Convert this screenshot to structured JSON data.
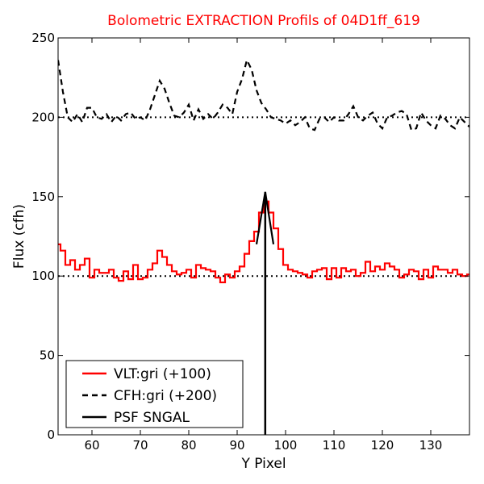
{
  "chart_data": {
    "type": "line",
    "title": "Bolometric EXTRACTION Profils of 04D1ff_619",
    "title_color": "#ff0000",
    "xlabel": "Y Pixel",
    "ylabel": "Flux (cfh)",
    "xlim": [
      53,
      138
    ],
    "ylim": [
      0,
      250
    ],
    "xticks": [
      60,
      70,
      80,
      90,
      100,
      110,
      120,
      130
    ],
    "yticks": [
      0,
      50,
      100,
      150,
      200,
      250
    ],
    "grid": false,
    "legend_position": "lower-left",
    "reference_lines": [
      {
        "y": 100,
        "style": "dotted",
        "color": "#000000"
      },
      {
        "y": 200,
        "style": "dotted",
        "color": "#000000"
      }
    ],
    "series": [
      {
        "name": "VLT:gri (+100)",
        "color": "#ff0000",
        "style": "steps",
        "x": [
          53,
          54,
          55,
          56,
          57,
          58,
          59,
          60,
          61,
          62,
          63,
          64,
          65,
          66,
          67,
          68,
          69,
          70,
          71,
          72,
          73,
          74,
          75,
          76,
          77,
          78,
          79,
          80,
          81,
          82,
          83,
          84,
          85,
          86,
          87,
          88,
          89,
          90,
          91,
          92,
          93,
          94,
          95,
          96,
          97,
          98,
          99,
          100,
          101,
          102,
          103,
          104,
          105,
          106,
          107,
          108,
          109,
          110,
          111,
          112,
          113,
          114,
          115,
          116,
          117,
          118,
          119,
          120,
          121,
          122,
          123,
          124,
          125,
          126,
          127,
          128,
          129,
          130,
          131,
          132,
          133,
          134,
          135,
          136,
          137,
          138
        ],
        "values": [
          120,
          116,
          107,
          110,
          104,
          107,
          111,
          99,
          104,
          102,
          102,
          104,
          99,
          97,
          103,
          98,
          107,
          98,
          99,
          104,
          108,
          116,
          112,
          107,
          103,
          101,
          102,
          104,
          99,
          107,
          105,
          104,
          103,
          99,
          96,
          101,
          99,
          103,
          106,
          114,
          122,
          128,
          140,
          147,
          140,
          130,
          117,
          107,
          104,
          103,
          102,
          101,
          99,
          103,
          104,
          105,
          98,
          105,
          99,
          105,
          103,
          104,
          100,
          102,
          109,
          103,
          106,
          104,
          108,
          106,
          104,
          99,
          101,
          104,
          103,
          98,
          104,
          99,
          106,
          104,
          104,
          102,
          104,
          101,
          100,
          101
        ]
      },
      {
        "name": "CFH:gri (+200)",
        "color": "#000000",
        "style": "dashed",
        "x": [
          53,
          54,
          55,
          56,
          57,
          58,
          59,
          60,
          61,
          62,
          63,
          64,
          65,
          66,
          67,
          68,
          69,
          70,
          71,
          72,
          73,
          74,
          75,
          76,
          77,
          78,
          79,
          80,
          81,
          82,
          83,
          84,
          85,
          86,
          87,
          88,
          89,
          90,
          91,
          92,
          93,
          94,
          95,
          96,
          97,
          98,
          99,
          100,
          101,
          102,
          103,
          104,
          105,
          106,
          107,
          108,
          109,
          110,
          111,
          112,
          113,
          114,
          115,
          116,
          117,
          118,
          119,
          120,
          121,
          122,
          123,
          124,
          125,
          126,
          127,
          128,
          129,
          130,
          131,
          132,
          133,
          134,
          135,
          136,
          137,
          138
        ],
        "values": [
          236,
          216,
          200,
          197,
          202,
          197,
          206,
          206,
          200,
          199,
          202,
          197,
          201,
          198,
          202,
          203,
          199,
          200,
          198,
          205,
          214,
          223,
          218,
          209,
          201,
          200,
          203,
          208,
          198,
          205,
          199,
          202,
          199,
          203,
          208,
          206,
          202,
          216,
          224,
          236,
          230,
          217,
          209,
          205,
          200,
          199,
          198,
          196,
          198,
          195,
          197,
          200,
          193,
          192,
          199,
          200,
          197,
          200,
          198,
          198,
          202,
          207,
          200,
          198,
          201,
          203,
          196,
          193,
          200,
          201,
          203,
          204,
          202,
          192,
          193,
          203,
          198,
          195,
          193,
          201,
          199,
          195,
          193,
          200,
          197,
          194
        ]
      },
      {
        "name": "PSF SNGAL",
        "color": "#000000",
        "style": "solid",
        "x": [
          94,
          95.8,
          97.5
        ],
        "values": [
          120,
          153,
          120
        ]
      }
    ],
    "vertical_lines": [
      {
        "x": 95.8,
        "from": 0,
        "to": 153,
        "color": "#000000"
      }
    ]
  }
}
